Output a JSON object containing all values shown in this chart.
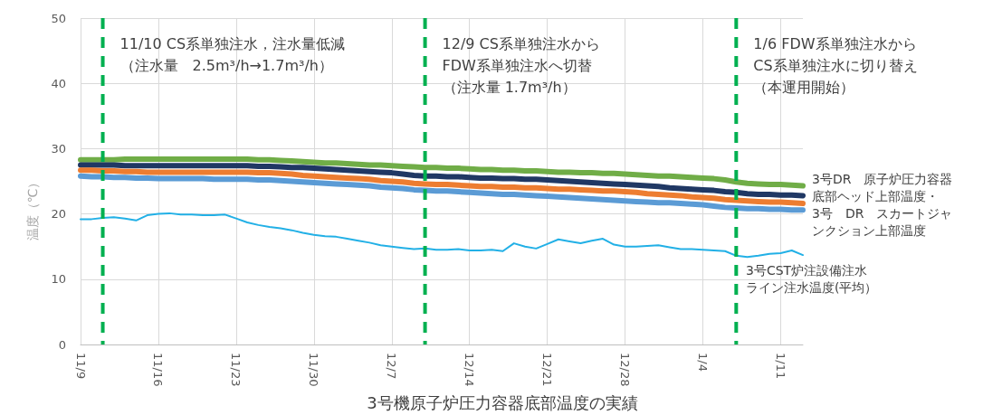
{
  "chart_data": {
    "type": "line",
    "title": "3号機原子炉圧力容器底部温度の実績",
    "ylabel": "温度（℃）",
    "categories": [
      "11/9",
      null,
      null,
      null,
      null,
      null,
      null,
      "11/16",
      null,
      null,
      null,
      null,
      null,
      null,
      "11/23",
      null,
      null,
      null,
      null,
      null,
      null,
      "11/30",
      null,
      null,
      null,
      null,
      null,
      null,
      "12/7",
      null,
      null,
      null,
      null,
      null,
      null,
      "12/14",
      null,
      null,
      null,
      null,
      null,
      null,
      "12/21",
      null,
      null,
      null,
      null,
      null,
      null,
      "12/28",
      null,
      null,
      null,
      null,
      null,
      null,
      "1/4",
      null,
      null,
      null,
      null,
      null,
      null,
      "1/11",
      null,
      null
    ],
    "ylim": [
      0,
      50
    ],
    "yticks": [
      0,
      10,
      20,
      30,
      40,
      50
    ],
    "grid": true,
    "marker": "none",
    "series": [
      {
        "color": "#70ad47",
        "values": [
          28.3,
          28.3,
          28.3,
          28.3,
          28.4,
          28.4,
          28.4,
          28.4,
          28.4,
          28.4,
          28.4,
          28.4,
          28.4,
          28.4,
          28.4,
          28.4,
          28.3,
          28.3,
          28.2,
          28.1,
          28.0,
          27.9,
          27.8,
          27.8,
          27.7,
          27.6,
          27.5,
          27.5,
          27.4,
          27.3,
          27.2,
          27.1,
          27.1,
          27.0,
          27.0,
          26.9,
          26.8,
          26.8,
          26.7,
          26.7,
          26.6,
          26.6,
          26.5,
          26.4,
          26.4,
          26.3,
          26.3,
          26.2,
          26.2,
          26.1,
          26.0,
          25.9,
          25.8,
          25.8,
          25.7,
          25.6,
          25.5,
          25.4,
          25.2,
          24.9,
          24.7,
          24.6,
          24.5,
          24.5,
          24.4,
          24.3
        ]
      },
      {
        "color": "#203864",
        "values": [
          27.5,
          27.5,
          27.5,
          27.5,
          27.4,
          27.4,
          27.4,
          27.4,
          27.4,
          27.4,
          27.4,
          27.4,
          27.4,
          27.4,
          27.4,
          27.4,
          27.3,
          27.3,
          27.2,
          27.1,
          27.1,
          27.0,
          26.9,
          26.8,
          26.7,
          26.6,
          26.5,
          26.4,
          26.3,
          26.1,
          25.9,
          25.8,
          25.8,
          25.7,
          25.7,
          25.6,
          25.5,
          25.5,
          25.4,
          25.4,
          25.3,
          25.3,
          25.2,
          25.1,
          25.0,
          24.9,
          24.8,
          24.7,
          24.6,
          24.5,
          24.4,
          24.3,
          24.2,
          24.0,
          23.9,
          23.8,
          23.7,
          23.6,
          23.4,
          23.3,
          23.1,
          23.0,
          23.0,
          22.9,
          22.9,
          22.8
        ]
      },
      {
        "color": "#ed7d31",
        "values": [
          26.7,
          26.7,
          26.6,
          26.6,
          26.5,
          26.5,
          26.4,
          26.4,
          26.4,
          26.4,
          26.4,
          26.4,
          26.4,
          26.4,
          26.4,
          26.4,
          26.3,
          26.3,
          26.2,
          26.1,
          25.9,
          25.8,
          25.7,
          25.6,
          25.5,
          25.4,
          25.3,
          25.1,
          25.0,
          24.9,
          24.7,
          24.6,
          24.5,
          24.5,
          24.4,
          24.3,
          24.2,
          24.2,
          24.1,
          24.1,
          24.0,
          24.0,
          23.9,
          23.8,
          23.8,
          23.7,
          23.6,
          23.5,
          23.5,
          23.4,
          23.3,
          23.1,
          23.0,
          22.9,
          22.8,
          22.6,
          22.5,
          22.4,
          22.2,
          22.1,
          22.0,
          21.9,
          21.8,
          21.8,
          21.7,
          21.6
        ]
      },
      {
        "color": "#5b9bd5",
        "values": [
          25.8,
          25.7,
          25.7,
          25.6,
          25.6,
          25.5,
          25.5,
          25.4,
          25.4,
          25.4,
          25.4,
          25.4,
          25.3,
          25.3,
          25.3,
          25.3,
          25.2,
          25.2,
          25.1,
          25.0,
          24.9,
          24.8,
          24.7,
          24.6,
          24.5,
          24.4,
          24.3,
          24.1,
          24.0,
          23.9,
          23.7,
          23.6,
          23.5,
          23.5,
          23.4,
          23.3,
          23.2,
          23.1,
          23.0,
          23.0,
          22.9,
          22.8,
          22.7,
          22.6,
          22.5,
          22.4,
          22.3,
          22.2,
          22.1,
          22.0,
          21.9,
          21.8,
          21.7,
          21.7,
          21.6,
          21.5,
          21.4,
          21.2,
          21.0,
          20.9,
          20.8,
          20.8,
          20.7,
          20.7,
          20.6,
          20.6
        ]
      },
      {
        "name": "3号CST炉注設備注水ライン注水温度(平均）",
        "color": "#22b0e6",
        "values": [
          19.2,
          19.2,
          19.4,
          19.5,
          19.3,
          19.0,
          19.8,
          20.0,
          20.1,
          19.9,
          19.9,
          19.8,
          19.8,
          19.9,
          19.3,
          18.7,
          18.3,
          18.0,
          17.8,
          17.5,
          17.1,
          16.8,
          16.6,
          16.5,
          16.2,
          15.9,
          15.6,
          15.2,
          15.0,
          14.8,
          14.6,
          14.7,
          14.5,
          14.5,
          14.6,
          14.4,
          14.4,
          14.5,
          14.3,
          15.5,
          15.0,
          14.7,
          15.4,
          16.1,
          15.8,
          15.5,
          15.9,
          16.2,
          15.3,
          15.0,
          15.0,
          15.1,
          15.2,
          14.9,
          14.6,
          14.6,
          14.5,
          14.4,
          14.3,
          13.6,
          13.4,
          13.6,
          13.9,
          14.0,
          14.4,
          13.7
        ]
      }
    ],
    "annotations": [
      "11/10 CS系単独注水，注水量低減（注水量　2.5m³/h→1.7m³/h）",
      "12/9 CS系単独注水からFDW系単独注水へ切替（注水量 1.7m³/h）",
      "1/6 FDW系単独注水からCS系単独注水に切り替え（本運用開始）",
      "3号DR　原子炉圧力容器底部ヘッド上部温度・",
      "3号　DR　スカートジャンクション上部温度"
    ]
  }
}
